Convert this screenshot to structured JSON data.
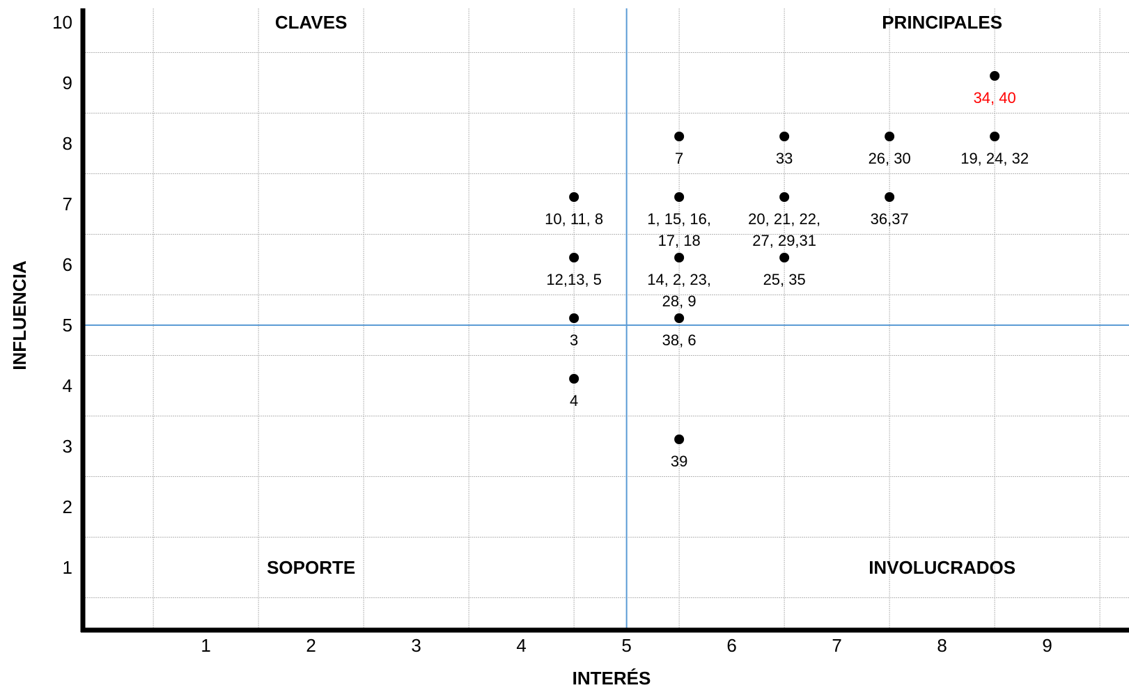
{
  "chart_data": {
    "type": "scatter",
    "title": "",
    "xlabel": "INTERÉS",
    "ylabel": "INFLUENCIA",
    "xlim": [
      0,
      10
    ],
    "ylim": [
      0,
      10
    ],
    "x_ticks": [
      1,
      2,
      3,
      4,
      5,
      6,
      7,
      8,
      9,
      10
    ],
    "y_ticks": [
      1,
      2,
      3,
      4,
      5,
      6,
      7,
      8,
      9,
      10
    ],
    "grid": true,
    "quadrant_dividers": {
      "x": 5,
      "y": 5,
      "color": "#5b9bd5"
    },
    "quadrants": [
      {
        "name": "CLAVES",
        "position": "top-left"
      },
      {
        "name": "PRINCIPALES",
        "position": "top-right"
      },
      {
        "name": "SOPORTE",
        "position": "bottom-left"
      },
      {
        "name": "INVOLUCRADOS",
        "position": "bottom-right"
      }
    ],
    "points": [
      {
        "x": 8.5,
        "y": 9,
        "label_lines": [
          "34, 40"
        ],
        "color": "#ff0000"
      },
      {
        "x": 5.5,
        "y": 8,
        "label_lines": [
          "7"
        ],
        "color": "#000000"
      },
      {
        "x": 6.5,
        "y": 8,
        "label_lines": [
          "33"
        ],
        "color": "#000000"
      },
      {
        "x": 7.5,
        "y": 8,
        "label_lines": [
          "26, 30"
        ],
        "color": "#000000"
      },
      {
        "x": 8.5,
        "y": 8,
        "label_lines": [
          "19, 24, 32"
        ],
        "color": "#000000"
      },
      {
        "x": 4.5,
        "y": 7,
        "label_lines": [
          "10, 11, 8"
        ],
        "color": "#000000"
      },
      {
        "x": 5.5,
        "y": 7,
        "label_lines": [
          "1, 15, 16,",
          "17, 18"
        ],
        "color": "#000000"
      },
      {
        "x": 6.5,
        "y": 7,
        "label_lines": [
          "20, 21, 22,",
          "27, 29,31"
        ],
        "color": "#000000"
      },
      {
        "x": 7.5,
        "y": 7,
        "label_lines": [
          "36,37"
        ],
        "color": "#000000"
      },
      {
        "x": 4.5,
        "y": 6,
        "label_lines": [
          "12,13, 5"
        ],
        "color": "#000000"
      },
      {
        "x": 5.5,
        "y": 6,
        "label_lines": [
          "14, 2, 23,",
          "28, 9"
        ],
        "color": "#000000"
      },
      {
        "x": 6.5,
        "y": 6,
        "label_lines": [
          "25, 35"
        ],
        "color": "#000000"
      },
      {
        "x": 4.5,
        "y": 5,
        "label_lines": [
          "3"
        ],
        "color": "#000000"
      },
      {
        "x": 5.5,
        "y": 5,
        "label_lines": [
          "38, 6"
        ],
        "color": "#000000"
      },
      {
        "x": 4.5,
        "y": 4,
        "label_lines": [
          "4"
        ],
        "color": "#000000"
      },
      {
        "x": 5.5,
        "y": 3,
        "label_lines": [
          "39"
        ],
        "color": "#000000"
      }
    ]
  }
}
